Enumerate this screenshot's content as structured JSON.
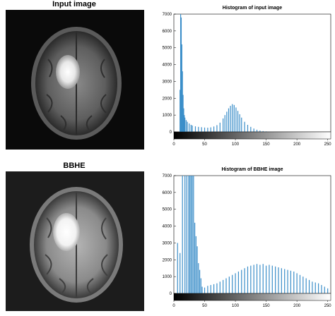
{
  "labels": {
    "input_title": "Input image",
    "bbhe_title": "BBHE"
  },
  "colors": {
    "bar": "#3b8ec9",
    "axis": "#000000",
    "grid_tick": "#333333"
  },
  "chart_data": [
    {
      "type": "bar",
      "title": "Histogram of input image",
      "xlabel": "",
      "ylabel": "",
      "xlim": [
        0,
        255
      ],
      "ylim": [
        0,
        7000
      ],
      "xticks": [
        0,
        50,
        100,
        150,
        200,
        250
      ],
      "yticks": [
        0,
        1000,
        2000,
        3000,
        4000,
        5000,
        6000,
        7000
      ],
      "grid": false,
      "colorbar": "grayscale 0-255 below x axis",
      "x": [
        10,
        11,
        12,
        13,
        14,
        15,
        16,
        17,
        18,
        20,
        22,
        25,
        28,
        30,
        35,
        40,
        45,
        50,
        55,
        60,
        65,
        70,
        75,
        80,
        83,
        86,
        89,
        92,
        95,
        98,
        101,
        104,
        107,
        110,
        115,
        120,
        125,
        130,
        135,
        140,
        145,
        150,
        155,
        160
      ],
      "values": [
        2500,
        7000,
        6800,
        5200,
        3600,
        2200,
        1400,
        1000,
        850,
        700,
        600,
        500,
        420,
        380,
        330,
        300,
        280,
        260,
        250,
        270,
        320,
        400,
        550,
        800,
        1000,
        1200,
        1400,
        1550,
        1650,
        1600,
        1450,
        1250,
        1050,
        850,
        600,
        420,
        300,
        200,
        130,
        80,
        50,
        30,
        15,
        5
      ]
    },
    {
      "type": "bar",
      "title": "Histogram of BBHE image",
      "xlabel": "",
      "ylabel": "",
      "xlim": [
        0,
        255
      ],
      "ylim": [
        0,
        7000
      ],
      "xticks": [
        0,
        50,
        100,
        150,
        200,
        250
      ],
      "yticks": [
        0,
        1000,
        2000,
        3000,
        4000,
        5000,
        6000,
        7000
      ],
      "grid": false,
      "colorbar": "grayscale 0-255 below x axis",
      "x": [
        6,
        10,
        14,
        18,
        21,
        24,
        26,
        28,
        30,
        32,
        34,
        36,
        38,
        40,
        42,
        44,
        46,
        50,
        55,
        60,
        65,
        70,
        75,
        80,
        85,
        90,
        95,
        100,
        105,
        110,
        115,
        120,
        125,
        130,
        135,
        140,
        145,
        150,
        155,
        160,
        165,
        170,
        175,
        180,
        185,
        190,
        195,
        200,
        205,
        210,
        215,
        220,
        225,
        230,
        235,
        240,
        245,
        250
      ],
      "values": [
        3000,
        2400,
        7000,
        7000,
        7000,
        7000,
        7000,
        7000,
        7000,
        7000,
        4200,
        3400,
        2800,
        1800,
        1400,
        900,
        400,
        350,
        450,
        500,
        550,
        600,
        700,
        800,
        900,
        1000,
        1100,
        1200,
        1300,
        1400,
        1500,
        1600,
        1650,
        1700,
        1750,
        1700,
        1750,
        1650,
        1700,
        1650,
        1600,
        1550,
        1500,
        1450,
        1400,
        1350,
        1300,
        1200,
        1100,
        1000,
        900,
        800,
        700,
        650,
        600,
        500,
        400,
        300
      ]
    }
  ]
}
